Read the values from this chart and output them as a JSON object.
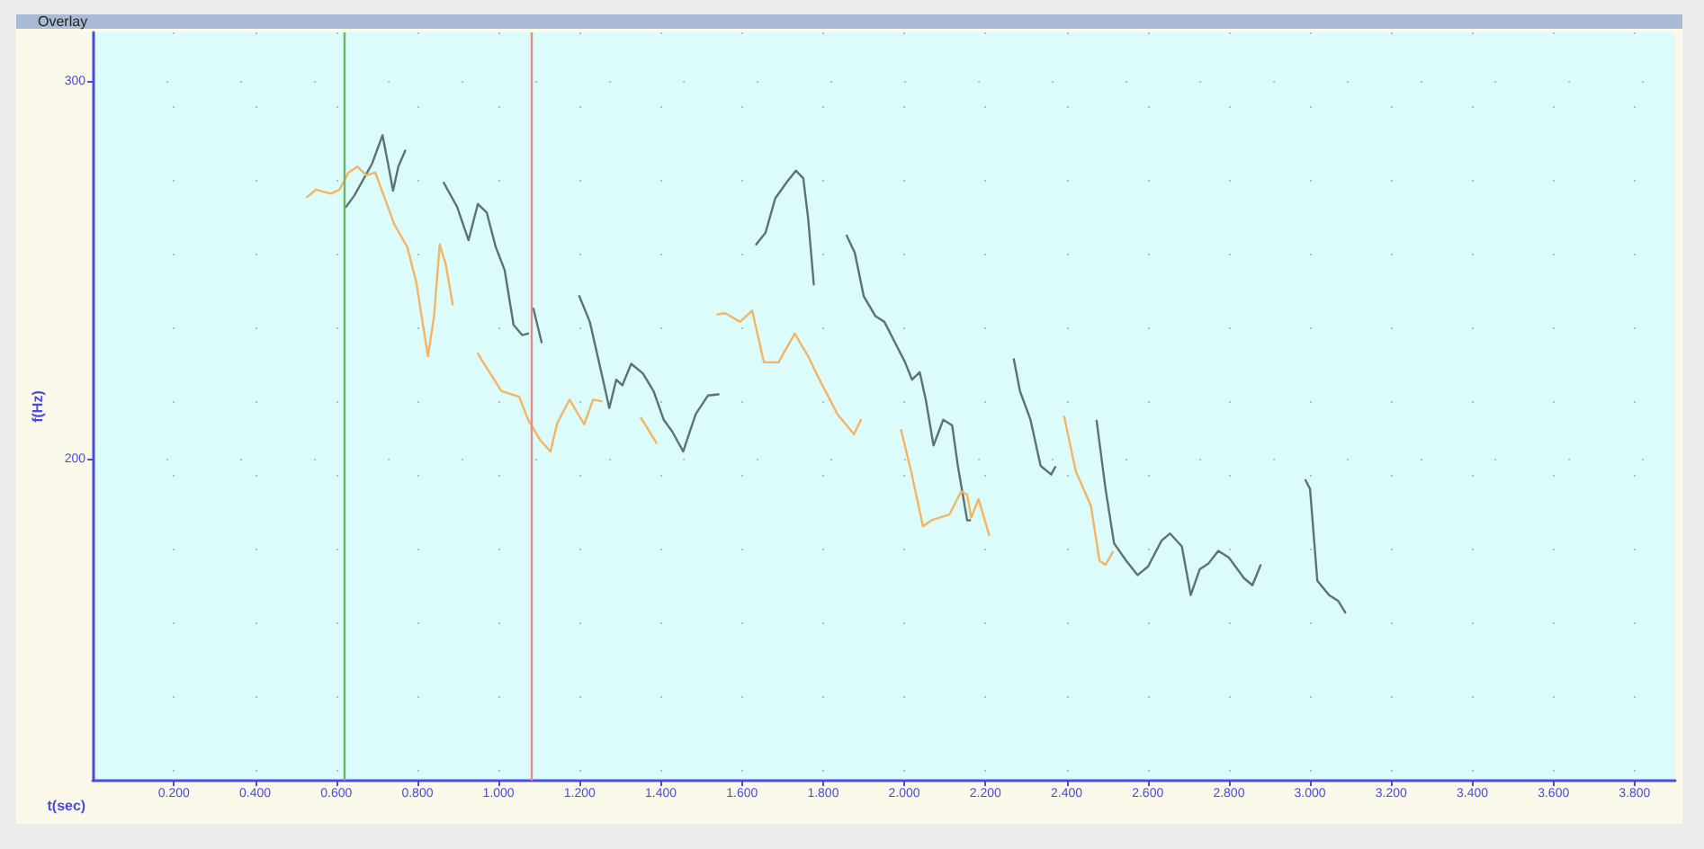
{
  "chart_data": {
    "type": "line",
    "title": "Overlay",
    "xlabel": "t(sec)",
    "ylabel": "f(Hz)",
    "xlim": [
      0,
      3.9
    ],
    "ylim": [
      115,
      313
    ],
    "xticks": [
      {
        "value": 0.2,
        "label": "0.200"
      },
      {
        "value": 0.4,
        "label": "0.400"
      },
      {
        "value": 0.6,
        "label": "0.600"
      },
      {
        "value": 0.8,
        "label": "0.800"
      },
      {
        "value": 1.0,
        "label": "1.000"
      },
      {
        "value": 1.2,
        "label": "1.200"
      },
      {
        "value": 1.4,
        "label": "1.400"
      },
      {
        "value": 1.6,
        "label": "1.600"
      },
      {
        "value": 1.8,
        "label": "1.800"
      },
      {
        "value": 2.0,
        "label": "2.000"
      },
      {
        "value": 2.2,
        "label": "2.200"
      },
      {
        "value": 2.4,
        "label": "2.400"
      },
      {
        "value": 2.6,
        "label": "2.600"
      },
      {
        "value": 2.8,
        "label": "2.800"
      },
      {
        "value": 3.0,
        "label": "3.000"
      },
      {
        "value": 3.2,
        "label": "3.200"
      },
      {
        "value": 3.4,
        "label": "3.400"
      },
      {
        "value": 3.6,
        "label": "3.600"
      },
      {
        "value": 3.8,
        "label": "3.800"
      }
    ],
    "yticks": [
      200,
      300
    ],
    "grid": true,
    "marker": "none",
    "line_style": "solid",
    "ref_lines": [
      {
        "axis": "x",
        "value": 0.623,
        "color": "#6cb36c"
      },
      {
        "axis": "x",
        "value": 1.076,
        "color": "#e48a8a"
      }
    ],
    "series": [
      {
        "color": "#5e7272",
        "x": [
          0.624,
          0.645,
          0.688,
          0.714,
          0.729,
          0.74,
          0.753,
          0.77,
          null,
          0.865,
          0.898,
          0.926,
          0.949,
          0.971,
          0.993,
          1.015,
          1.037,
          1.058,
          1.073,
          null,
          1.086,
          1.106,
          null,
          1.199,
          1.225,
          1.254,
          1.273,
          1.29,
          1.305,
          1.327,
          1.356,
          1.382,
          1.407,
          1.428,
          1.455,
          1.486,
          1.516,
          1.542,
          null,
          1.635,
          1.658,
          1.682,
          1.712,
          1.733,
          1.751,
          1.763,
          1.777,
          null,
          1.858,
          1.878,
          1.9,
          1.929,
          1.951,
          1.98,
          2.002,
          2.019,
          2.038,
          2.053,
          2.072,
          2.096,
          2.118,
          2.132,
          2.155,
          2.162,
          null,
          2.27,
          2.285,
          2.311,
          2.336,
          2.362,
          2.372,
          null,
          2.474,
          2.496,
          2.517,
          2.547,
          2.575,
          2.601,
          2.634,
          2.655,
          2.684,
          2.706,
          2.728,
          2.75,
          2.774,
          2.8,
          2.837,
          2.858,
          2.878,
          null,
          2.989,
          3.0,
          3.018,
          3.047,
          3.069,
          3.087
        ],
        "values": [
          266.8,
          269.9,
          278.2,
          285.8,
          277.5,
          271.1,
          277.5,
          281.7,
          null,
          273.2,
          266.8,
          258.0,
          267.6,
          265.3,
          256.2,
          250.1,
          235.6,
          232.9,
          233.3,
          null,
          239.9,
          231.0,
          null,
          243.2,
          236.4,
          222.7,
          213.6,
          221.1,
          219.6,
          225.3,
          222.7,
          218.1,
          210.5,
          207.4,
          202.1,
          212.0,
          216.9,
          217.2,
          null,
          256.9,
          260.0,
          269.1,
          273.6,
          276.4,
          274.4,
          263.8,
          246.3,
          null,
          259.2,
          254.7,
          243.2,
          237.9,
          236.4,
          230.3,
          225.7,
          221.1,
          223.1,
          215.8,
          203.7,
          210.5,
          209.0,
          198.3,
          183.9,
          183.9,
          null,
          226.5,
          218.1,
          210.5,
          198.3,
          196.0,
          198.0,
          null,
          210.2,
          192.2,
          177.8,
          173.2,
          169.4,
          171.7,
          178.5,
          180.4,
          177.0,
          164.1,
          170.9,
          172.5,
          175.8,
          174.0,
          168.6,
          166.7,
          172.0,
          null,
          194.5,
          192.2,
          167.9,
          164.1,
          162.6,
          159.5
        ]
      },
      {
        "color": "#f3b464",
        "x": [
          0.528,
          0.55,
          0.587,
          0.608,
          0.63,
          0.652,
          0.674,
          0.696,
          0.717,
          0.743,
          0.775,
          0.797,
          0.826,
          0.841,
          0.855,
          0.87,
          0.887,
          null,
          0.949,
          0.971,
          1.007,
          1.051,
          1.073,
          1.102,
          1.128,
          1.145,
          1.175,
          1.211,
          1.233,
          1.254,
          null,
          1.351,
          1.389,
          null,
          1.54,
          1.559,
          1.595,
          1.625,
          1.654,
          1.69,
          1.73,
          1.763,
          1.791,
          1.835,
          1.876,
          1.893,
          null,
          1.992,
          2.017,
          2.046,
          2.067,
          2.111,
          2.14,
          2.155,
          2.165,
          2.183,
          2.209,
          null,
          2.394,
          2.423,
          2.46,
          2.481,
          2.496,
          2.514
        ],
        "values": [
          269.4,
          271.4,
          270.3,
          271.4,
          275.9,
          277.5,
          275.2,
          275.9,
          269.9,
          262.2,
          256.2,
          247.0,
          227.3,
          237.9,
          256.9,
          251.6,
          241.0,
          null,
          228.0,
          224.2,
          218.1,
          216.6,
          210.5,
          205.2,
          202.1,
          209.7,
          215.8,
          209.3,
          215.8,
          215.4,
          null,
          211.0,
          204.4,
          null,
          238.4,
          238.7,
          236.4,
          239.4,
          225.7,
          225.7,
          233.3,
          227.3,
          221.1,
          212.0,
          206.7,
          210.5,
          null,
          207.8,
          196.8,
          182.3,
          183.9,
          185.4,
          191.5,
          190.7,
          184.6,
          189.5,
          180.0,
          null,
          211.3,
          196.8,
          187.7,
          173.2,
          172.1,
          175.5
        ]
      }
    ]
  }
}
